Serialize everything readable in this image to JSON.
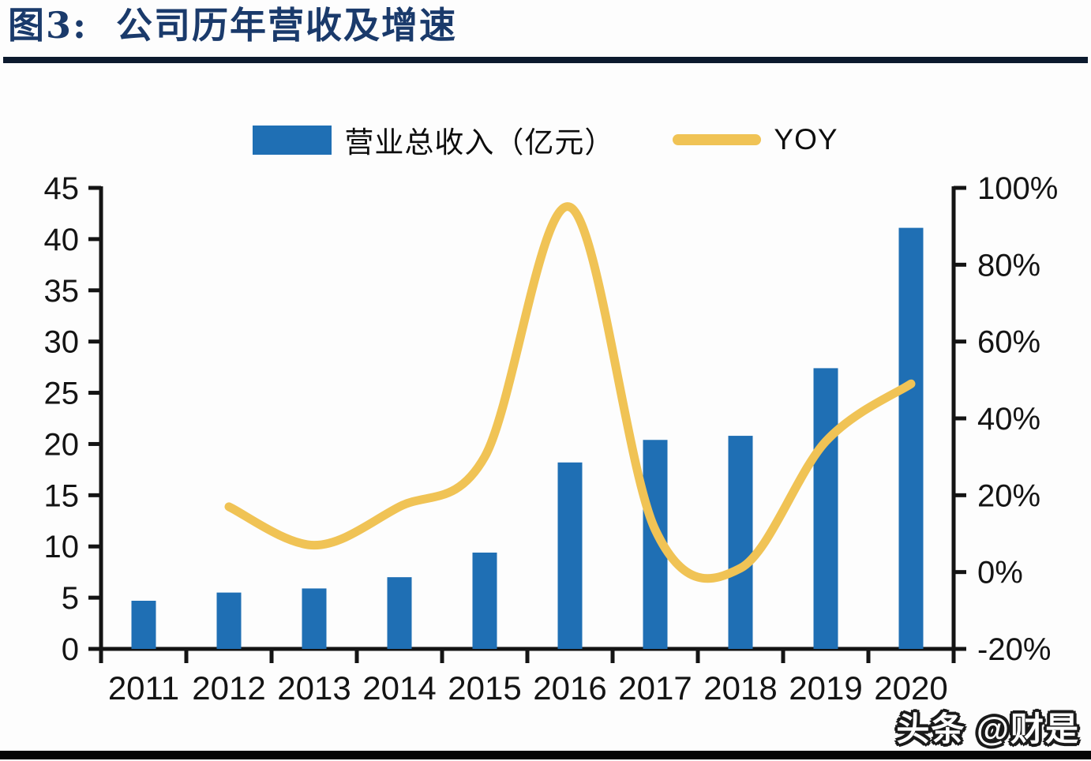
{
  "figure": {
    "title": "图3:  公司历年营收及增速",
    "watermark": "头条 @财是"
  },
  "colors": {
    "bar": "#1f6fb4",
    "line": "#f0c355",
    "title": "#1a3a6b",
    "axis": "#141414",
    "background": "#fdfdfd"
  },
  "legend": [
    {
      "label": "营业总收入（亿元）",
      "marker": "bar-swatch",
      "color": "#1f6fb4"
    },
    {
      "label": "YOY",
      "marker": "line-swatch",
      "color": "#f0c355"
    }
  ],
  "chart_data": {
    "type": "bar",
    "subtype": "bar+line combo, dual axis",
    "title": "公司历年营收及增速",
    "categories": [
      "2011",
      "2012",
      "2013",
      "2014",
      "2015",
      "2016",
      "2017",
      "2018",
      "2019",
      "2020"
    ],
    "series": [
      {
        "name": "营业总收入（亿元）",
        "type": "bar",
        "axis": "left",
        "color": "#1f6fb4",
        "values": [
          4.7,
          5.5,
          5.9,
          7.0,
          9.4,
          18.2,
          20.4,
          20.8,
          27.4,
          41.1
        ]
      },
      {
        "name": "YOY",
        "type": "line",
        "axis": "right",
        "color": "#f0c355",
        "unit": "%",
        "values": [
          null,
          17,
          7,
          17,
          30,
          95,
          11,
          1,
          34,
          49
        ]
      }
    ],
    "left_axis": {
      "min": 0,
      "max": 45,
      "tick_step": 5,
      "tick_labels": [
        "0",
        "5",
        "10",
        "15",
        "20",
        "25",
        "30",
        "35",
        "40",
        "45"
      ]
    },
    "right_axis": {
      "min": -20,
      "max": 100,
      "tick_step": 20,
      "tick_labels": [
        "-20%",
        "0%",
        "20%",
        "40%",
        "60%",
        "80%",
        "100%"
      ]
    },
    "grid": false,
    "legend_position": "top-center"
  }
}
